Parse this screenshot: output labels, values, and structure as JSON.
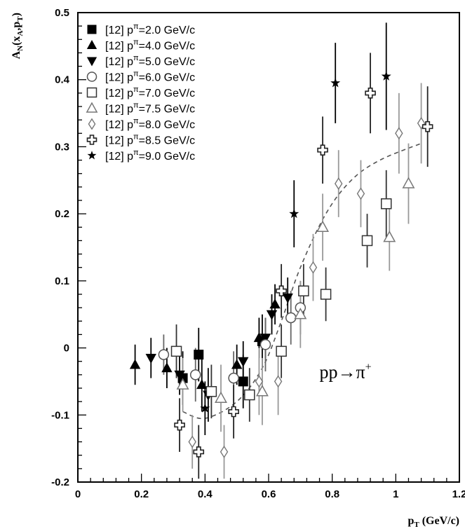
{
  "chart_data": {
    "type": "scatter",
    "title": "",
    "xlabel": "p_T (GeV/c)",
    "ylabel": "A_N(x_A,p_T)",
    "xlim": [
      0,
      1.2
    ],
    "ylim": [
      -0.2,
      0.5
    ],
    "xticks": [
      "0",
      "0.2",
      "0.4",
      "0.6",
      "0.8",
      "1",
      "1.2"
    ],
    "yticks": [
      "-0.2",
      "-0.1",
      "0",
      "0.1",
      "0.2",
      "0.3",
      "0.4",
      "0.5"
    ],
    "grid": false,
    "legend_position": "top-left",
    "annotation": "pp→π⁺",
    "series": [
      {
        "name": "[12] pπ=2.0 GeV/c",
        "marker": "square-filled",
        "points": [
          {
            "x": 0.33,
            "y": -0.045,
            "err": 0.04
          },
          {
            "x": 0.38,
            "y": -0.01,
            "err": 0.04
          },
          {
            "x": 0.52,
            "y": -0.05,
            "err": 0.04
          },
          {
            "x": 0.58,
            "y": 0.01,
            "err": 0.04
          }
        ]
      },
      {
        "name": "[12] pπ=4.0 GeV/c",
        "marker": "triangle-up-filled",
        "points": [
          {
            "x": 0.18,
            "y": -0.025,
            "err": 0.03
          },
          {
            "x": 0.28,
            "y": -0.03,
            "err": 0.03
          },
          {
            "x": 0.39,
            "y": -0.055,
            "err": 0.04
          },
          {
            "x": 0.5,
            "y": -0.025,
            "err": 0.03
          },
          {
            "x": 0.57,
            "y": 0.015,
            "err": 0.03
          },
          {
            "x": 0.62,
            "y": 0.065,
            "err": 0.03
          }
        ]
      },
      {
        "name": "[12] pπ=5.0 GeV/c",
        "marker": "triangle-down-filled",
        "points": [
          {
            "x": 0.23,
            "y": -0.015,
            "err": 0.03
          },
          {
            "x": 0.32,
            "y": -0.04,
            "err": 0.03
          },
          {
            "x": 0.41,
            "y": -0.07,
            "err": 0.04
          },
          {
            "x": 0.52,
            "y": -0.02,
            "err": 0.03
          },
          {
            "x": 0.59,
            "y": 0.015,
            "err": 0.03
          },
          {
            "x": 0.61,
            "y": 0.05,
            "err": 0.03
          },
          {
            "x": 0.66,
            "y": 0.075,
            "err": 0.03
          }
        ]
      },
      {
        "name": "[12] pπ=6.0 GeV/c",
        "marker": "circle-open",
        "points": [
          {
            "x": 0.27,
            "y": -0.01,
            "err": 0.03
          },
          {
            "x": 0.37,
            "y": -0.04,
            "err": 0.04
          },
          {
            "x": 0.49,
            "y": -0.045,
            "err": 0.04
          },
          {
            "x": 0.59,
            "y": 0.005,
            "err": 0.04
          },
          {
            "x": 0.67,
            "y": 0.045,
            "err": 0.04
          },
          {
            "x": 0.7,
            "y": 0.06,
            "err": 0.04
          }
        ]
      },
      {
        "name": "[12] pπ=7.0 GeV/c",
        "marker": "square-open",
        "points": [
          {
            "x": 0.31,
            "y": -0.005,
            "err": 0.04
          },
          {
            "x": 0.42,
            "y": -0.065,
            "err": 0.04
          },
          {
            "x": 0.54,
            "y": -0.07,
            "err": 0.04
          },
          {
            "x": 0.64,
            "y": -0.005,
            "err": 0.04
          },
          {
            "x": 0.71,
            "y": 0.085,
            "err": 0.04
          },
          {
            "x": 0.78,
            "y": 0.08,
            "err": 0.04
          },
          {
            "x": 0.91,
            "y": 0.16,
            "err": 0.04
          },
          {
            "x": 0.97,
            "y": 0.215,
            "err": 0.05
          }
        ]
      },
      {
        "name": "[12] pπ=7.5 GeV/c",
        "marker": "triangle-up-open",
        "points": [
          {
            "x": 0.33,
            "y": -0.055,
            "err": 0.04
          },
          {
            "x": 0.45,
            "y": -0.075,
            "err": 0.05
          },
          {
            "x": 0.58,
            "y": -0.065,
            "err": 0.05
          },
          {
            "x": 0.7,
            "y": 0.05,
            "err": 0.05
          },
          {
            "x": 0.77,
            "y": 0.18,
            "err": 0.05
          },
          {
            "x": 0.98,
            "y": 0.165,
            "err": 0.05
          },
          {
            "x": 1.04,
            "y": 0.245,
            "err": 0.06
          }
        ]
      },
      {
        "name": "[12] pπ=8.0 GeV/c",
        "marker": "diamond-open",
        "points": [
          {
            "x": 0.36,
            "y": -0.14,
            "err": 0.04
          },
          {
            "x": 0.46,
            "y": -0.155,
            "err": 0.04
          },
          {
            "x": 0.57,
            "y": -0.05,
            "err": 0.05
          },
          {
            "x": 0.63,
            "y": -0.05,
            "err": 0.05
          },
          {
            "x": 0.74,
            "y": 0.12,
            "err": 0.05
          },
          {
            "x": 0.82,
            "y": 0.245,
            "err": 0.05
          },
          {
            "x": 0.89,
            "y": 0.23,
            "err": 0.05
          },
          {
            "x": 1.01,
            "y": 0.32,
            "err": 0.06
          },
          {
            "x": 1.08,
            "y": 0.335,
            "err": 0.06
          }
        ]
      },
      {
        "name": "[12] pπ=8.5 GeV/c",
        "marker": "cross-open",
        "points": [
          {
            "x": 0.32,
            "y": -0.115,
            "err": 0.04
          },
          {
            "x": 0.38,
            "y": -0.155,
            "err": 0.04
          },
          {
            "x": 0.49,
            "y": -0.095,
            "err": 0.04
          },
          {
            "x": 0.64,
            "y": 0.085,
            "err": 0.04
          },
          {
            "x": 0.77,
            "y": 0.295,
            "err": 0.05
          },
          {
            "x": 0.92,
            "y": 0.38,
            "err": 0.06
          },
          {
            "x": 1.1,
            "y": 0.33,
            "err": 0.06
          }
        ]
      },
      {
        "name": "[12] pπ=9.0 GeV/c",
        "marker": "star-filled",
        "points": [
          {
            "x": 0.4,
            "y": -0.09,
            "err": 0.04
          },
          {
            "x": 0.68,
            "y": 0.2,
            "err": 0.05
          },
          {
            "x": 0.81,
            "y": 0.395,
            "err": 0.06
          },
          {
            "x": 0.97,
            "y": 0.405,
            "err": 0.08
          }
        ]
      }
    ],
    "fit_curve": [
      [
        0.33,
        -0.095
      ],
      [
        0.4,
        -0.105
      ],
      [
        0.5,
        -0.08
      ],
      [
        0.58,
        -0.03
      ],
      [
        0.64,
        0.04
      ],
      [
        0.7,
        0.12
      ],
      [
        0.78,
        0.2
      ],
      [
        0.86,
        0.25
      ],
      [
        0.95,
        0.28
      ],
      [
        1.08,
        0.305
      ]
    ]
  }
}
